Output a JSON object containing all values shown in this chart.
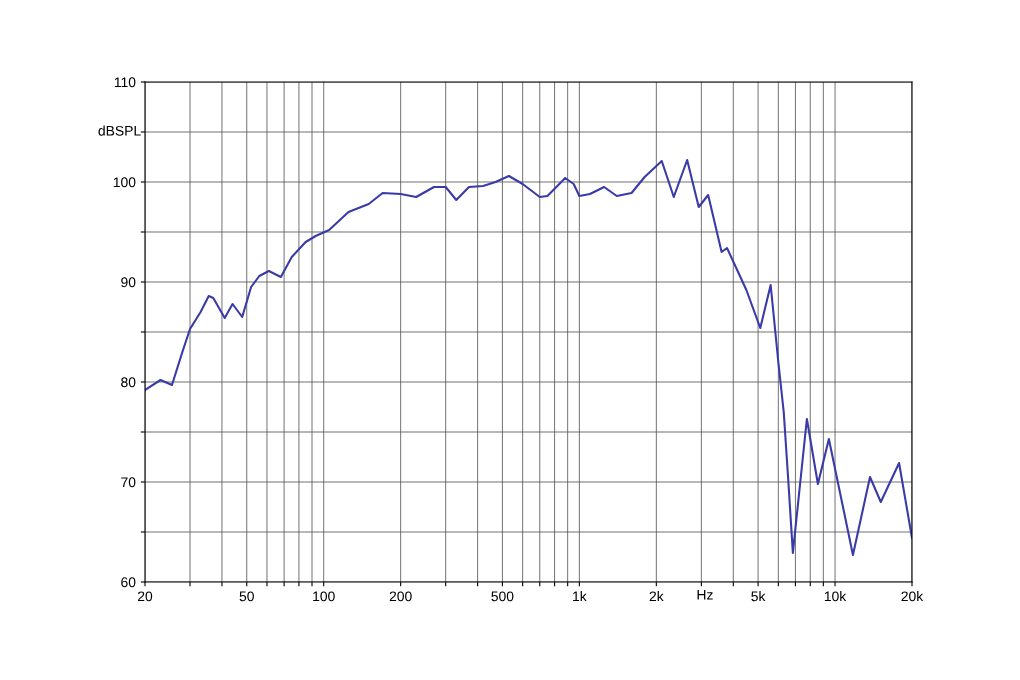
{
  "chart_data": {
    "type": "line",
    "xlabel": "Hz",
    "ylabel": "dBSPL",
    "log": "x",
    "grid": true,
    "x": [
      20,
      23,
      25.5,
      28,
      30,
      33,
      35.5,
      37,
      41,
      44,
      48,
      52,
      56,
      61,
      68,
      75,
      85,
      93,
      105,
      125,
      150,
      170,
      200,
      230,
      270,
      300,
      330,
      370,
      420,
      470,
      530,
      600,
      700,
      750,
      820,
      880,
      950,
      1000,
      1100,
      1250,
      1400,
      1600,
      1800,
      2100,
      2340,
      2640,
      2930,
      3190,
      3600,
      3780,
      4500,
      5100,
      5600,
      6000,
      6300,
      6550,
      6840,
      7760,
      8570,
      9460,
      11750,
      13700,
      15100,
      17800,
      20000
    ],
    "series": [
      {
        "color": "#3a3aa8",
        "values": [
          79.2,
          80.2,
          79.7,
          83,
          85.3,
          87,
          88.6,
          88.4,
          86.4,
          87.8,
          86.5,
          89.5,
          90.6,
          91.1,
          90.5,
          92.5,
          94,
          94.6,
          95.2,
          97,
          97.8,
          98.9,
          98.8,
          98.5,
          99.5,
          99.5,
          98.2,
          99.5,
          99.6,
          100,
          100.6,
          99.8,
          98.5,
          98.6,
          99.6,
          100.4,
          99.8,
          98.6,
          98.8,
          99.5,
          98.6,
          98.9,
          100.5,
          102.1,
          98.5,
          102.2,
          97.5,
          98.7,
          93,
          93.4,
          89.2,
          85.4,
          89.7,
          82,
          77,
          70.5,
          62.9,
          76.3,
          69.8,
          74.3,
          62.7,
          70.5,
          68,
          71.9,
          64.4
        ]
      }
    ],
    "xlim": [
      20,
      20000
    ],
    "ylim": [
      60,
      110
    ],
    "xticks": [
      20,
      {
        "value": 30,
        "label": null
      },
      {
        "value": 40,
        "label": null
      },
      50,
      {
        "value": 60,
        "label": null
      },
      {
        "value": 70,
        "label": null
      },
      {
        "value": 80,
        "label": null
      },
      {
        "value": 90,
        "label": null
      },
      100,
      200,
      {
        "value": 300,
        "label": null
      },
      {
        "value": 400,
        "label": null
      },
      500,
      {
        "value": 600,
        "label": null
      },
      {
        "value": 700,
        "label": null
      },
      {
        "value": 800,
        "label": null
      },
      {
        "value": 900,
        "label": null
      },
      {
        "value": 1000,
        "label": "1k"
      },
      {
        "value": 2000,
        "label": "2k"
      },
      {
        "value": 3000,
        "label": null
      },
      {
        "value": 4000,
        "label": null
      },
      {
        "value": 5000,
        "label": "5k"
      },
      {
        "value": 6000,
        "label": null
      },
      {
        "value": 7000,
        "label": null
      },
      {
        "value": 8000,
        "label": null
      },
      {
        "value": 9000,
        "label": null
      },
      {
        "value": 10000,
        "label": "10k"
      },
      {
        "value": 20000,
        "label": "20k"
      }
    ],
    "yticks": [
      60,
      {
        "value": 65,
        "label": null
      },
      70,
      {
        "value": 75,
        "label": null
      },
      80,
      {
        "value": 85,
        "label": null
      },
      90,
      {
        "value": 95,
        "label": null
      },
      100,
      {
        "value": 105,
        "label": null
      },
      110
    ]
  }
}
